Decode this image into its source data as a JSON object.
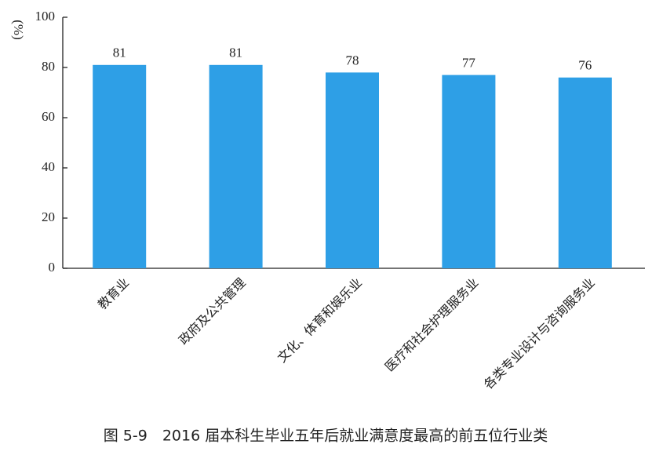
{
  "chart_data": {
    "type": "bar",
    "caption": "图 5-9　2016 届本科生毕业五年后就业满意度最高的前五位行业类",
    "y_label": "(%)",
    "categories": [
      "教育业",
      "政府及公共管理",
      "文化、体育和娱乐业",
      "医疗和社会护理服务业",
      "各类专业设计与咨询服务业"
    ],
    "values": [
      81,
      81,
      78,
      77,
      76
    ],
    "color": "#2e9fe6",
    "ylim": [
      0,
      100
    ],
    "yticks": [
      0,
      20,
      40,
      60,
      80,
      100
    ],
    "grid": false
  }
}
